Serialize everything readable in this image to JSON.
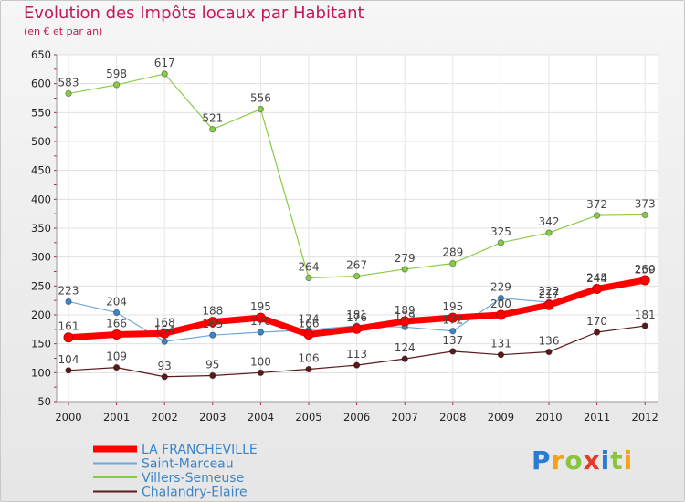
{
  "title": "Evolution des Impôts locaux par Habitant",
  "subtitle": "(en € et par an)",
  "logo": {
    "text": "Proxiti",
    "letters": [
      "P",
      "r",
      "o",
      "x",
      "i",
      "t",
      "i"
    ],
    "colors": [
      "#2b7bd2",
      "#f3a21a",
      "#8bc53f",
      "#e53a2a",
      "#2b7bd2",
      "#8bc53f",
      "#f3a21a"
    ]
  },
  "chart_data": {
    "type": "line",
    "title": "Evolution des Impôts locaux par Habitant",
    "subtitle": "(en € et par an)",
    "x": [
      "2000",
      "2001",
      "2002",
      "2003",
      "2004",
      "2005",
      "2006",
      "2007",
      "2008",
      "2009",
      "2010",
      "2011",
      "2012"
    ],
    "yticks": [
      50,
      100,
      150,
      200,
      250,
      300,
      350,
      400,
      450,
      500,
      550,
      600,
      650
    ],
    "ylim": [
      50,
      650
    ],
    "grid": true,
    "legend_position": "bottom-left",
    "series": [
      {
        "name": "Villers-Semeuse",
        "color": "#88cc44",
        "pointColor": "#88cc44",
        "width": 1.2,
        "values": [
          583,
          598,
          617,
          521,
          556,
          264,
          267,
          279,
          289,
          325,
          342,
          372,
          373
        ],
        "labels": [
          "583",
          "598",
          "617",
          "521",
          "556",
          "264",
          "267",
          "279",
          "289",
          "325",
          "342",
          "372",
          "373"
        ]
      },
      {
        "name": "Saint-Marceau",
        "color": "#6fa8dc",
        "pointColor": "#3d85c6",
        "width": 1.2,
        "values": [
          223,
          204,
          154,
          165,
          170,
          174,
          181,
          179,
          172,
          229,
          222,
          244,
          259
        ],
        "labels": [
          "223",
          "204",
          "154",
          "165",
          "170",
          "174",
          "181",
          "179",
          "172",
          "229",
          "222",
          "244",
          "259"
        ]
      },
      {
        "name": "Chalandry-Elaire",
        "color": "#5b1a1a",
        "pointColor": "#5b1a1a",
        "width": 1.2,
        "values": [
          104,
          109,
          93,
          95,
          100,
          106,
          113,
          124,
          137,
          131,
          136,
          170,
          181
        ],
        "labels": [
          "104",
          "109",
          "93",
          "95",
          "100",
          "106",
          "113",
          "124",
          "137",
          "131",
          "136",
          "170",
          "181"
        ]
      },
      {
        "name": "LA FRANCHEVILLE",
        "color": "#ff0000",
        "pointColor": "#ff0000",
        "width": 7,
        "values": [
          161,
          166,
          168,
          188,
          195,
          166,
          176,
          189,
          195,
          200,
          217,
          245,
          260
        ],
        "labels": [
          "161",
          "166",
          "168",
          "188",
          "195",
          "166",
          "176",
          "189",
          "195",
          "200",
          "217",
          "245",
          "260"
        ]
      }
    ],
    "legend": [
      {
        "name": "LA FRANCHEVILLE",
        "color": "#ff0000",
        "width": 7
      },
      {
        "name": "Saint-Marceau",
        "color": "#6fa8dc",
        "width": 2
      },
      {
        "name": "Villers-Semeuse",
        "color": "#88cc44",
        "width": 2
      },
      {
        "name": "Chalandry-Elaire",
        "color": "#5b1a1a",
        "width": 2
      }
    ]
  }
}
